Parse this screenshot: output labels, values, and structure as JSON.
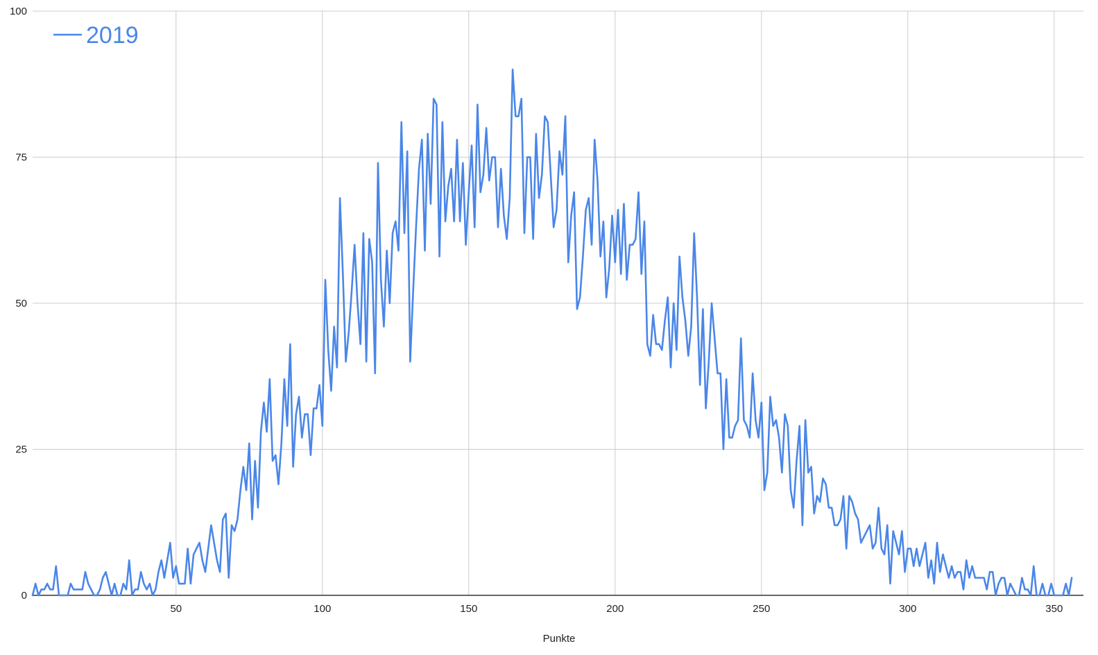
{
  "chart_data": {
    "type": "line",
    "title": "",
    "xlabel": "Punkte",
    "ylabel": "",
    "xlim": [
      1,
      360
    ],
    "ylim": [
      0,
      100
    ],
    "x_ticks": [
      50,
      100,
      150,
      200,
      250,
      300,
      350
    ],
    "y_ticks": [
      0,
      25,
      50,
      75,
      100
    ],
    "grid": true,
    "legend_position": "top-left",
    "colors": {
      "series": "#4a86e8",
      "grid": "#cccccc",
      "axis": "#333333"
    },
    "x_start": 1,
    "x_step": 1,
    "series": [
      {
        "name": "2019",
        "values": [
          0,
          2,
          0,
          1,
          1,
          2,
          1,
          1,
          5,
          0,
          0,
          0,
          0,
          2,
          1,
          1,
          1,
          1,
          4,
          2,
          1,
          0,
          0,
          1,
          3,
          4,
          2,
          0,
          2,
          0,
          0,
          2,
          1,
          6,
          0,
          1,
          1,
          4,
          2,
          1,
          2,
          0,
          1,
          4,
          6,
          3,
          6,
          9,
          3,
          5,
          2,
          2,
          2,
          8,
          2,
          7,
          8,
          9,
          6,
          4,
          8,
          12,
          9,
          6,
          4,
          13,
          14,
          3,
          12,
          11,
          13,
          18,
          22,
          18,
          26,
          13,
          23,
          15,
          28,
          33,
          28,
          37,
          23,
          24,
          19,
          26,
          37,
          29,
          43,
          22,
          31,
          34,
          27,
          31,
          31,
          24,
          32,
          32,
          36,
          29,
          54,
          42,
          35,
          46,
          39,
          68,
          55,
          40,
          45,
          52,
          60,
          50,
          43,
          62,
          40,
          61,
          57,
          38,
          74,
          54,
          46,
          59,
          50,
          62,
          64,
          59,
          81,
          62,
          76,
          40,
          52,
          63,
          73,
          78,
          59,
          79,
          67,
          85,
          84,
          58,
          81,
          64,
          70,
          73,
          64,
          78,
          64,
          74,
          60,
          69,
          77,
          63,
          84,
          69,
          72,
          80,
          71,
          75,
          75,
          63,
          73,
          65,
          61,
          68,
          90,
          82,
          82,
          85,
          62,
          75,
          75,
          61,
          79,
          68,
          72,
          82,
          81,
          72,
          63,
          66,
          76,
          72,
          82,
          57,
          65,
          69,
          49,
          51,
          58,
          66,
          68,
          60,
          78,
          71,
          58,
          64,
          51,
          56,
          65,
          57,
          66,
          55,
          67,
          54,
          60,
          60,
          61,
          69,
          55,
          64,
          43,
          41,
          48,
          43,
          43,
          42,
          47,
          51,
          39,
          50,
          42,
          58,
          51,
          47,
          41,
          46,
          62,
          51,
          36,
          49,
          32,
          40,
          50,
          44,
          38,
          38,
          25,
          37,
          27,
          27,
          29,
          30,
          44,
          30,
          29,
          27,
          38,
          30,
          27,
          33,
          18,
          21,
          34,
          29,
          30,
          27,
          21,
          31,
          29,
          18,
          15,
          23,
          29,
          12,
          30,
          21,
          22,
          14,
          17,
          16,
          20,
          19,
          15,
          15,
          12,
          12,
          13,
          17,
          8,
          17,
          16,
          14,
          13,
          9,
          10,
          11,
          12,
          8,
          9,
          15,
          8,
          7,
          12,
          2,
          11,
          9,
          7,
          11,
          4,
          8,
          8,
          5,
          8,
          5,
          7,
          9,
          3,
          6,
          2,
          9,
          4,
          7,
          5,
          3,
          5,
          3,
          4,
          4,
          1,
          6,
          3,
          5,
          3,
          3,
          3,
          3,
          1,
          4,
          4,
          0,
          2,
          3,
          3,
          0,
          2,
          1,
          0,
          0,
          3,
          1,
          1,
          0,
          5,
          0,
          0,
          2,
          0,
          0,
          2,
          0,
          0,
          0,
          0,
          2,
          0,
          3
        ]
      }
    ]
  }
}
